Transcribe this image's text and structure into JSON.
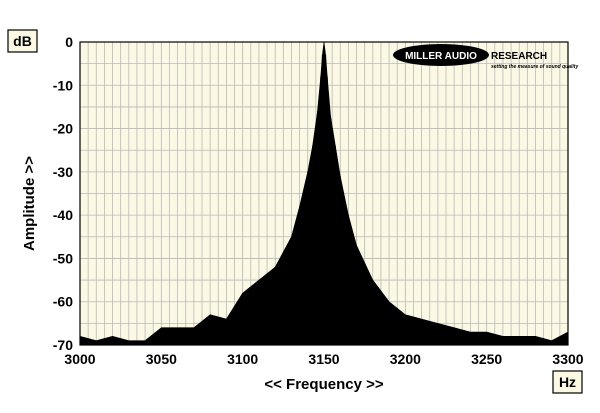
{
  "chart_data": {
    "type": "area",
    "title": "",
    "xlabel": "<< Frequency >>",
    "ylabel": "Amplitude >>",
    "x_unit": "Hz",
    "y_unit": "dB",
    "xlim": [
      3000,
      3300
    ],
    "ylim": [
      -70,
      0
    ],
    "xticks": [
      3000,
      3050,
      3100,
      3150,
      3200,
      3250,
      3300
    ],
    "yticks": [
      0,
      -10,
      -20,
      -30,
      -40,
      -50,
      -60,
      -70
    ],
    "grid": true,
    "colors": {
      "plot_background": "#fbf8e3",
      "grid": "#b9b9b9",
      "fill": "#000000"
    },
    "series": [
      {
        "peak_hz": 3150,
        "peak_db": 0,
        "x": [
          3000,
          3010,
          3020,
          3030,
          3040,
          3050,
          3060,
          3070,
          3080,
          3090,
          3100,
          3110,
          3120,
          3130,
          3135,
          3140,
          3143,
          3146,
          3148,
          3149,
          3150,
          3151,
          3152,
          3154,
          3157,
          3160,
          3165,
          3170,
          3180,
          3190,
          3200,
          3210,
          3220,
          3230,
          3240,
          3250,
          3260,
          3270,
          3280,
          3290,
          3300
        ],
        "y": [
          -68,
          -69,
          -68,
          -69,
          -69,
          -66,
          -66,
          -66,
          -63,
          -64,
          -58,
          -55,
          -52,
          -45,
          -38,
          -30,
          -24,
          -16,
          -8,
          -3,
          0,
          -3,
          -8,
          -17,
          -24,
          -31,
          -40,
          -47,
          -55,
          -60,
          -63,
          -64,
          -65,
          -66,
          -67,
          -67,
          -68,
          -68,
          -68,
          -69,
          -67
        ]
      }
    ],
    "logo": {
      "name": "MILLER AUDIO RESEARCH",
      "word1": "MILLER AUDIO",
      "word2": "RESEARCH",
      "tagline": "setting the measure of sound quality"
    }
  }
}
